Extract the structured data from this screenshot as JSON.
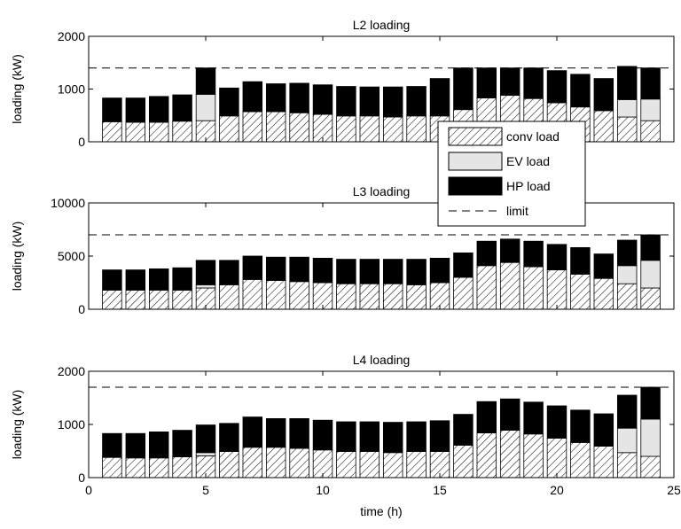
{
  "figure": {
    "xlabel": "time (h)",
    "xticks": [
      0,
      5,
      10,
      15,
      20,
      25
    ],
    "legend": {
      "location": "overlapping right side of top panel",
      "entries": [
        {
          "key": "conv",
          "label": "conv load",
          "style": "hatched"
        },
        {
          "key": "ev",
          "label": "EV load",
          "style": "light-gray"
        },
        {
          "key": "hp",
          "label": "HP load",
          "style": "black"
        },
        {
          "key": "limit",
          "label": "limit",
          "style": "dashed-line"
        }
      ]
    },
    "colors": {
      "ev": "#e5e5e5",
      "hp": "#000000",
      "conv_hatch": "#000000"
    }
  },
  "chart_data": [
    {
      "type": "bar",
      "stacked": true,
      "title": "L2 loading",
      "ylabel": "loading (kW)",
      "ylim": [
        0,
        2000
      ],
      "yticks": [
        0,
        1000,
        2000
      ],
      "xlim": [
        0,
        25
      ],
      "x": [
        1,
        2,
        3,
        4,
        5,
        6,
        7,
        8,
        9,
        10,
        11,
        12,
        13,
        14,
        15,
        16,
        17,
        18,
        19,
        20,
        21,
        22,
        23,
        24
      ],
      "series": [
        {
          "name": "conv load",
          "values": [
            380,
            370,
            370,
            390,
            400,
            490,
            570,
            570,
            550,
            520,
            490,
            490,
            470,
            490,
            490,
            610,
            830,
            880,
            820,
            740,
            660,
            590,
            470,
            400
          ]
        },
        {
          "name": "EV load",
          "values": [
            0,
            0,
            0,
            0,
            500,
            0,
            0,
            0,
            0,
            0,
            0,
            0,
            0,
            0,
            0,
            0,
            0,
            0,
            0,
            0,
            0,
            0,
            330,
            410
          ]
        },
        {
          "name": "HP load",
          "values": [
            450,
            460,
            490,
            500,
            500,
            530,
            570,
            530,
            560,
            560,
            560,
            550,
            570,
            560,
            710,
            790,
            570,
            520,
            580,
            610,
            620,
            610,
            630,
            590
          ]
        }
      ],
      "limit": 1400
    },
    {
      "type": "bar",
      "stacked": true,
      "title": "L3 loading",
      "ylabel": "loading (kW)",
      "ylim": [
        0,
        10000
      ],
      "yticks": [
        0,
        5000,
        10000
      ],
      "xlim": [
        0,
        25
      ],
      "x": [
        1,
        2,
        3,
        4,
        5,
        6,
        7,
        8,
        9,
        10,
        11,
        12,
        13,
        14,
        15,
        16,
        17,
        18,
        19,
        20,
        21,
        22,
        23,
        24
      ],
      "series": [
        {
          "name": "conv load",
          "values": [
            1800,
            1800,
            1800,
            1800,
            2000,
            2300,
            2800,
            2700,
            2600,
            2500,
            2400,
            2400,
            2400,
            2300,
            2500,
            3000,
            4100,
            4400,
            4000,
            3700,
            3300,
            2900,
            2400,
            2000
          ]
        },
        {
          "name": "EV load",
          "values": [
            0,
            0,
            0,
            0,
            300,
            0,
            0,
            0,
            0,
            0,
            0,
            0,
            0,
            0,
            0,
            0,
            0,
            0,
            0,
            0,
            0,
            0,
            1700,
            2600
          ]
        },
        {
          "name": "HP load",
          "values": [
            1900,
            1900,
            2000,
            2100,
            2300,
            2300,
            2200,
            2200,
            2300,
            2300,
            2300,
            2300,
            2300,
            2400,
            2300,
            2300,
            2300,
            2200,
            2400,
            2400,
            2500,
            2300,
            2400,
            2400
          ]
        }
      ],
      "limit": 7000
    },
    {
      "type": "bar",
      "stacked": true,
      "title": "L4 loading",
      "ylabel": "loading (kW)",
      "ylim": [
        0,
        2000
      ],
      "yticks": [
        0,
        1000,
        2000
      ],
      "xlim": [
        0,
        25
      ],
      "x": [
        1,
        2,
        3,
        4,
        5,
        6,
        7,
        8,
        9,
        10,
        11,
        12,
        13,
        14,
        15,
        16,
        17,
        18,
        19,
        20,
        21,
        22,
        23,
        24
      ],
      "series": [
        {
          "name": "conv load",
          "values": [
            380,
            370,
            370,
            390,
            410,
            490,
            570,
            570,
            550,
            520,
            490,
            490,
            470,
            490,
            490,
            610,
            840,
            890,
            820,
            740,
            660,
            590,
            470,
            400
          ]
        },
        {
          "name": "EV load",
          "values": [
            0,
            0,
            0,
            0,
            60,
            0,
            0,
            0,
            0,
            0,
            0,
            0,
            0,
            0,
            0,
            0,
            0,
            0,
            0,
            0,
            0,
            0,
            460,
            700
          ]
        },
        {
          "name": "HP load",
          "values": [
            450,
            460,
            490,
            500,
            520,
            530,
            570,
            540,
            560,
            560,
            560,
            560,
            570,
            560,
            580,
            580,
            590,
            590,
            600,
            610,
            610,
            610,
            620,
            600
          ]
        }
      ],
      "limit": 1700
    }
  ]
}
